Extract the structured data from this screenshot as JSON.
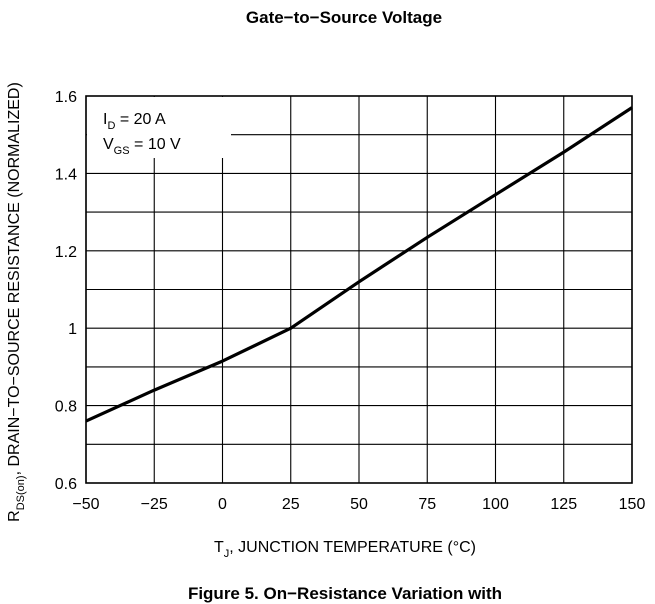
{
  "header": {
    "top_caption": "Gate−to−Source Voltage"
  },
  "chart_data": {
    "type": "line",
    "xlabel": "T_J, JUNCTION TEMPERATURE (°C)",
    "xlabel_main": "T",
    "xlabel_sub": "J",
    "xlabel_rest": ", JUNCTION TEMPERATURE (°C)",
    "ylabel": "R_DS(on), DRAIN−TO−SOURCE RESISTANCE (NORMALIZED)",
    "ylabel_main": "R",
    "ylabel_sub": "DS(on)",
    "ylabel_rest": ", DRAIN−TO−SOURCE RESISTANCE (NORMALIZED)",
    "xlim": [
      -50,
      150
    ],
    "ylim": [
      0.6,
      1.6
    ],
    "x_ticks": [
      -50,
      -25,
      0,
      25,
      50,
      75,
      100,
      125,
      150
    ],
    "x_tick_labels": [
      "−50",
      "−25",
      "0",
      "25",
      "50",
      "75",
      "100",
      "125",
      "150"
    ],
    "y_ticks": [
      0.6,
      0.8,
      1.0,
      1.2,
      1.4,
      1.6
    ],
    "y_tick_labels": [
      "0.6",
      "0.8",
      "1",
      "1.2",
      "1.4",
      "1.6"
    ],
    "grid": true,
    "series": [
      {
        "x": [
          -50,
          -25,
          0,
          25,
          50,
          75,
          100,
          125,
          150
        ],
        "y": [
          0.76,
          0.84,
          0.915,
          1.0,
          1.12,
          1.235,
          1.345,
          1.455,
          1.57
        ]
      }
    ],
    "annotation": {
      "line1_main": "I",
      "line1_sub": "D",
      "line1_rest": " = 20 A",
      "line2_main": "V",
      "line2_sub": "GS",
      "line2_rest": " = 10 V"
    }
  },
  "footer": {
    "caption": "Figure 5. On−Resistance Variation with"
  }
}
